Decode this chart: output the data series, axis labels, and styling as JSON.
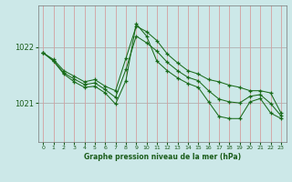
{
  "title": "Graphe pression niveau de la mer (hPa)",
  "bg_color": "#cce8e8",
  "grid_color_h": "#b0b0b0",
  "grid_color_v": "#d4a0a0",
  "line_color": "#1a6b1a",
  "marker_color": "#1a6b1a",
  "label_color": "#1a5c1a",
  "ylabel_ticks": [
    1021,
    1022
  ],
  "xlim": [
    -0.5,
    23.5
  ],
  "ylim": [
    1020.3,
    1022.75
  ],
  "series": [
    {
      "x": [
        0,
        1,
        2,
        3,
        4,
        5,
        6,
        7,
        8,
        9,
        10,
        11,
        12,
        13,
        14,
        15,
        16,
        17,
        18,
        19,
        20,
        21,
        22,
        23
      ],
      "y": [
        1021.9,
        1021.78,
        1021.58,
        1021.48,
        1021.38,
        1021.42,
        1021.3,
        1021.22,
        1021.8,
        1022.38,
        1022.28,
        1022.12,
        1021.88,
        1021.72,
        1021.58,
        1021.52,
        1021.42,
        1021.38,
        1021.32,
        1021.28,
        1021.22,
        1021.22,
        1021.18,
        1020.82
      ]
    },
    {
      "x": [
        0,
        1,
        2,
        3,
        4,
        5,
        6,
        7,
        8,
        9,
        10,
        11,
        12,
        13,
        14,
        15,
        16,
        17,
        18,
        19,
        20,
        21,
        22,
        23
      ],
      "y": [
        1021.9,
        1021.75,
        1021.52,
        1021.38,
        1021.28,
        1021.3,
        1021.18,
        1020.98,
        1021.4,
        1022.42,
        1022.2,
        1021.75,
        1021.58,
        1021.45,
        1021.35,
        1021.28,
        1021.02,
        1020.76,
        1020.72,
        1020.72,
        1021.02,
        1021.08,
        1020.82,
        1020.72
      ]
    },
    {
      "x": [
        0,
        1,
        2,
        3,
        4,
        5,
        6,
        7,
        8,
        9,
        10,
        11,
        12,
        13,
        14,
        15,
        16,
        17,
        18,
        19,
        20,
        21,
        22,
        23
      ],
      "y": [
        1021.9,
        1021.76,
        1021.54,
        1021.43,
        1021.33,
        1021.36,
        1021.24,
        1021.1,
        1021.6,
        1022.2,
        1022.08,
        1021.93,
        1021.73,
        1021.58,
        1021.46,
        1021.4,
        1021.22,
        1021.07,
        1021.02,
        1021.0,
        1021.12,
        1021.15,
        1020.99,
        1020.77
      ]
    }
  ]
}
